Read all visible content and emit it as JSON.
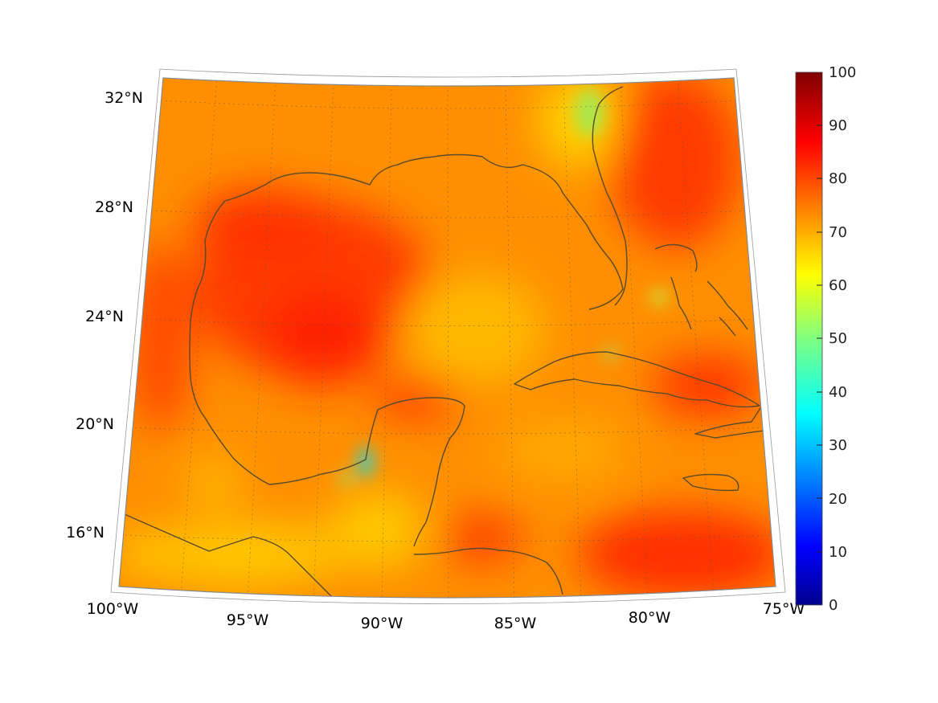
{
  "lat_labels": [
    "32°N",
    "28°N",
    "24°N",
    "20°N",
    "16°N"
  ],
  "lon_labels": [
    "100°W",
    "95°W",
    "90°W",
    "85°W",
    "80°W",
    "75°W"
  ],
  "colorbar": {
    "ticks": [
      "100",
      "90",
      "80",
      "70",
      "60",
      "50",
      "40",
      "30",
      "20",
      "10",
      "0"
    ],
    "min": 0,
    "max": 100,
    "colormap": "jet"
  },
  "colors": {
    "dominant_field": "#ff8c00",
    "high_field": "#ff3000",
    "low_field": "#ffd000",
    "coastline": "#5a4a2a"
  }
}
